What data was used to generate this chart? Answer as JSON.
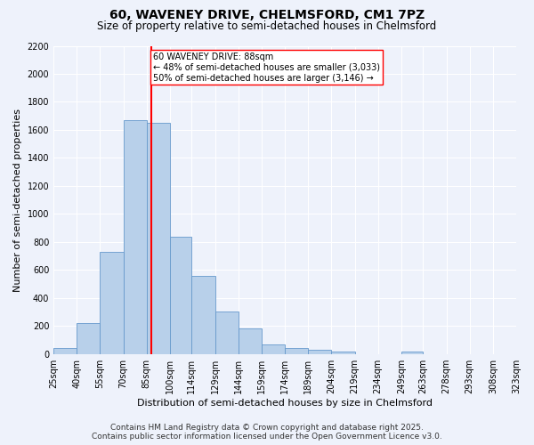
{
  "title": "60, WAVENEY DRIVE, CHELMSFORD, CM1 7PZ",
  "subtitle": "Size of property relative to semi-detached houses in Chelmsford",
  "xlabel": "Distribution of semi-detached houses by size in Chelmsford",
  "ylabel": "Number of semi-detached properties",
  "bar_edges": [
    25,
    40,
    55,
    70,
    85,
    100,
    114,
    129,
    144,
    159,
    174,
    189,
    204,
    219,
    234,
    249,
    263,
    278,
    293,
    308,
    323
  ],
  "bar_heights": [
    40,
    220,
    730,
    1670,
    1650,
    840,
    560,
    300,
    185,
    70,
    40,
    30,
    20,
    0,
    0,
    15,
    0,
    0,
    0,
    0
  ],
  "bar_color": "#b8d0ea",
  "bar_edge_color": "#6699cc",
  "property_size": 88,
  "vline_color": "red",
  "annotation_text": "60 WAVENEY DRIVE: 88sqm\n← 48% of semi-detached houses are smaller (3,033)\n50% of semi-detached houses are larger (3,146) →",
  "annotation_box_color": "white",
  "annotation_box_edge_color": "red",
  "ylim": [
    0,
    2200
  ],
  "yticks": [
    0,
    200,
    400,
    600,
    800,
    1000,
    1200,
    1400,
    1600,
    1800,
    2000,
    2200
  ],
  "tick_labels": [
    "25sqm",
    "40sqm",
    "55sqm",
    "70sqm",
    "85sqm",
    "100sqm",
    "114sqm",
    "129sqm",
    "144sqm",
    "159sqm",
    "174sqm",
    "189sqm",
    "204sqm",
    "219sqm",
    "234sqm",
    "249sqm",
    "263sqm",
    "278sqm",
    "293sqm",
    "308sqm",
    "323sqm"
  ],
  "footer_line1": "Contains HM Land Registry data © Crown copyright and database right 2025.",
  "footer_line2": "Contains public sector information licensed under the Open Government Licence v3.0.",
  "bg_color": "#eef2fb",
  "grid_color": "white",
  "title_fontsize": 10,
  "subtitle_fontsize": 8.5,
  "axis_label_fontsize": 8,
  "tick_fontsize": 7,
  "footer_fontsize": 6.5,
  "annotation_fontsize": 7
}
